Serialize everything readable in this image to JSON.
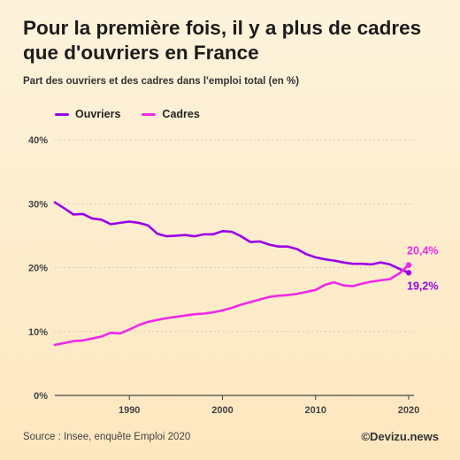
{
  "header": {
    "title": "Pour la première fois, il y a plus de cadres que d'ouvriers en France",
    "subtitle": "Part des ouvriers et des cadres dans l'emploi total (en %)"
  },
  "footer": {
    "source": "Source : Insee, enquête Emploi 2020",
    "credit": "©Devizu.news"
  },
  "chart_data": {
    "type": "line",
    "title": "Pour la première fois, il y a plus de cadres que d'ouvriers en France",
    "subtitle": "Part des ouvriers et des cadres dans l'emploi total (en %)",
    "xlabel": "",
    "ylabel": "",
    "xlim": [
      1982,
      2020
    ],
    "ylim": [
      0,
      40
    ],
    "x_ticks": [
      1990,
      2000,
      2010,
      2020
    ],
    "y_ticks": [
      0,
      10,
      20,
      30,
      40
    ],
    "y_tick_labels": [
      "0%",
      "10%",
      "20%",
      "30%",
      "40%"
    ],
    "grid": "horizontal",
    "legend": "top-left",
    "x": [
      1982,
      1983,
      1984,
      1985,
      1986,
      1987,
      1988,
      1989,
      1990,
      1991,
      1992,
      1993,
      1994,
      1995,
      1996,
      1997,
      1998,
      1999,
      2000,
      2001,
      2002,
      2003,
      2004,
      2005,
      2006,
      2007,
      2008,
      2009,
      2010,
      2011,
      2012,
      2013,
      2014,
      2015,
      2016,
      2017,
      2018,
      2019,
      2020
    ],
    "series": [
      {
        "name": "Ouvriers",
        "color": "#9b00e6",
        "values": [
          30.2,
          29.3,
          28.3,
          28.4,
          27.7,
          27.5,
          26.8,
          27.0,
          27.2,
          27.0,
          26.6,
          25.3,
          24.9,
          25.0,
          25.1,
          24.9,
          25.2,
          25.2,
          25.7,
          25.6,
          24.9,
          24.0,
          24.1,
          23.6,
          23.3,
          23.3,
          22.9,
          22.1,
          21.6,
          21.3,
          21.1,
          20.8,
          20.6,
          20.6,
          20.5,
          20.8,
          20.5,
          19.8,
          19.2
        ],
        "end_label": "19,2%"
      },
      {
        "name": "Cadres",
        "color": "#f028e6",
        "values": [
          7.9,
          8.2,
          8.5,
          8.6,
          8.9,
          9.2,
          9.8,
          9.7,
          10.3,
          11.0,
          11.5,
          11.8,
          12.1,
          12.3,
          12.5,
          12.7,
          12.8,
          13.0,
          13.3,
          13.7,
          14.2,
          14.6,
          15.0,
          15.4,
          15.6,
          15.7,
          15.9,
          16.2,
          16.5,
          17.3,
          17.7,
          17.2,
          17.1,
          17.5,
          17.8,
          18.0,
          18.2,
          19.1,
          20.4
        ],
        "end_label": "20,4%"
      }
    ]
  }
}
